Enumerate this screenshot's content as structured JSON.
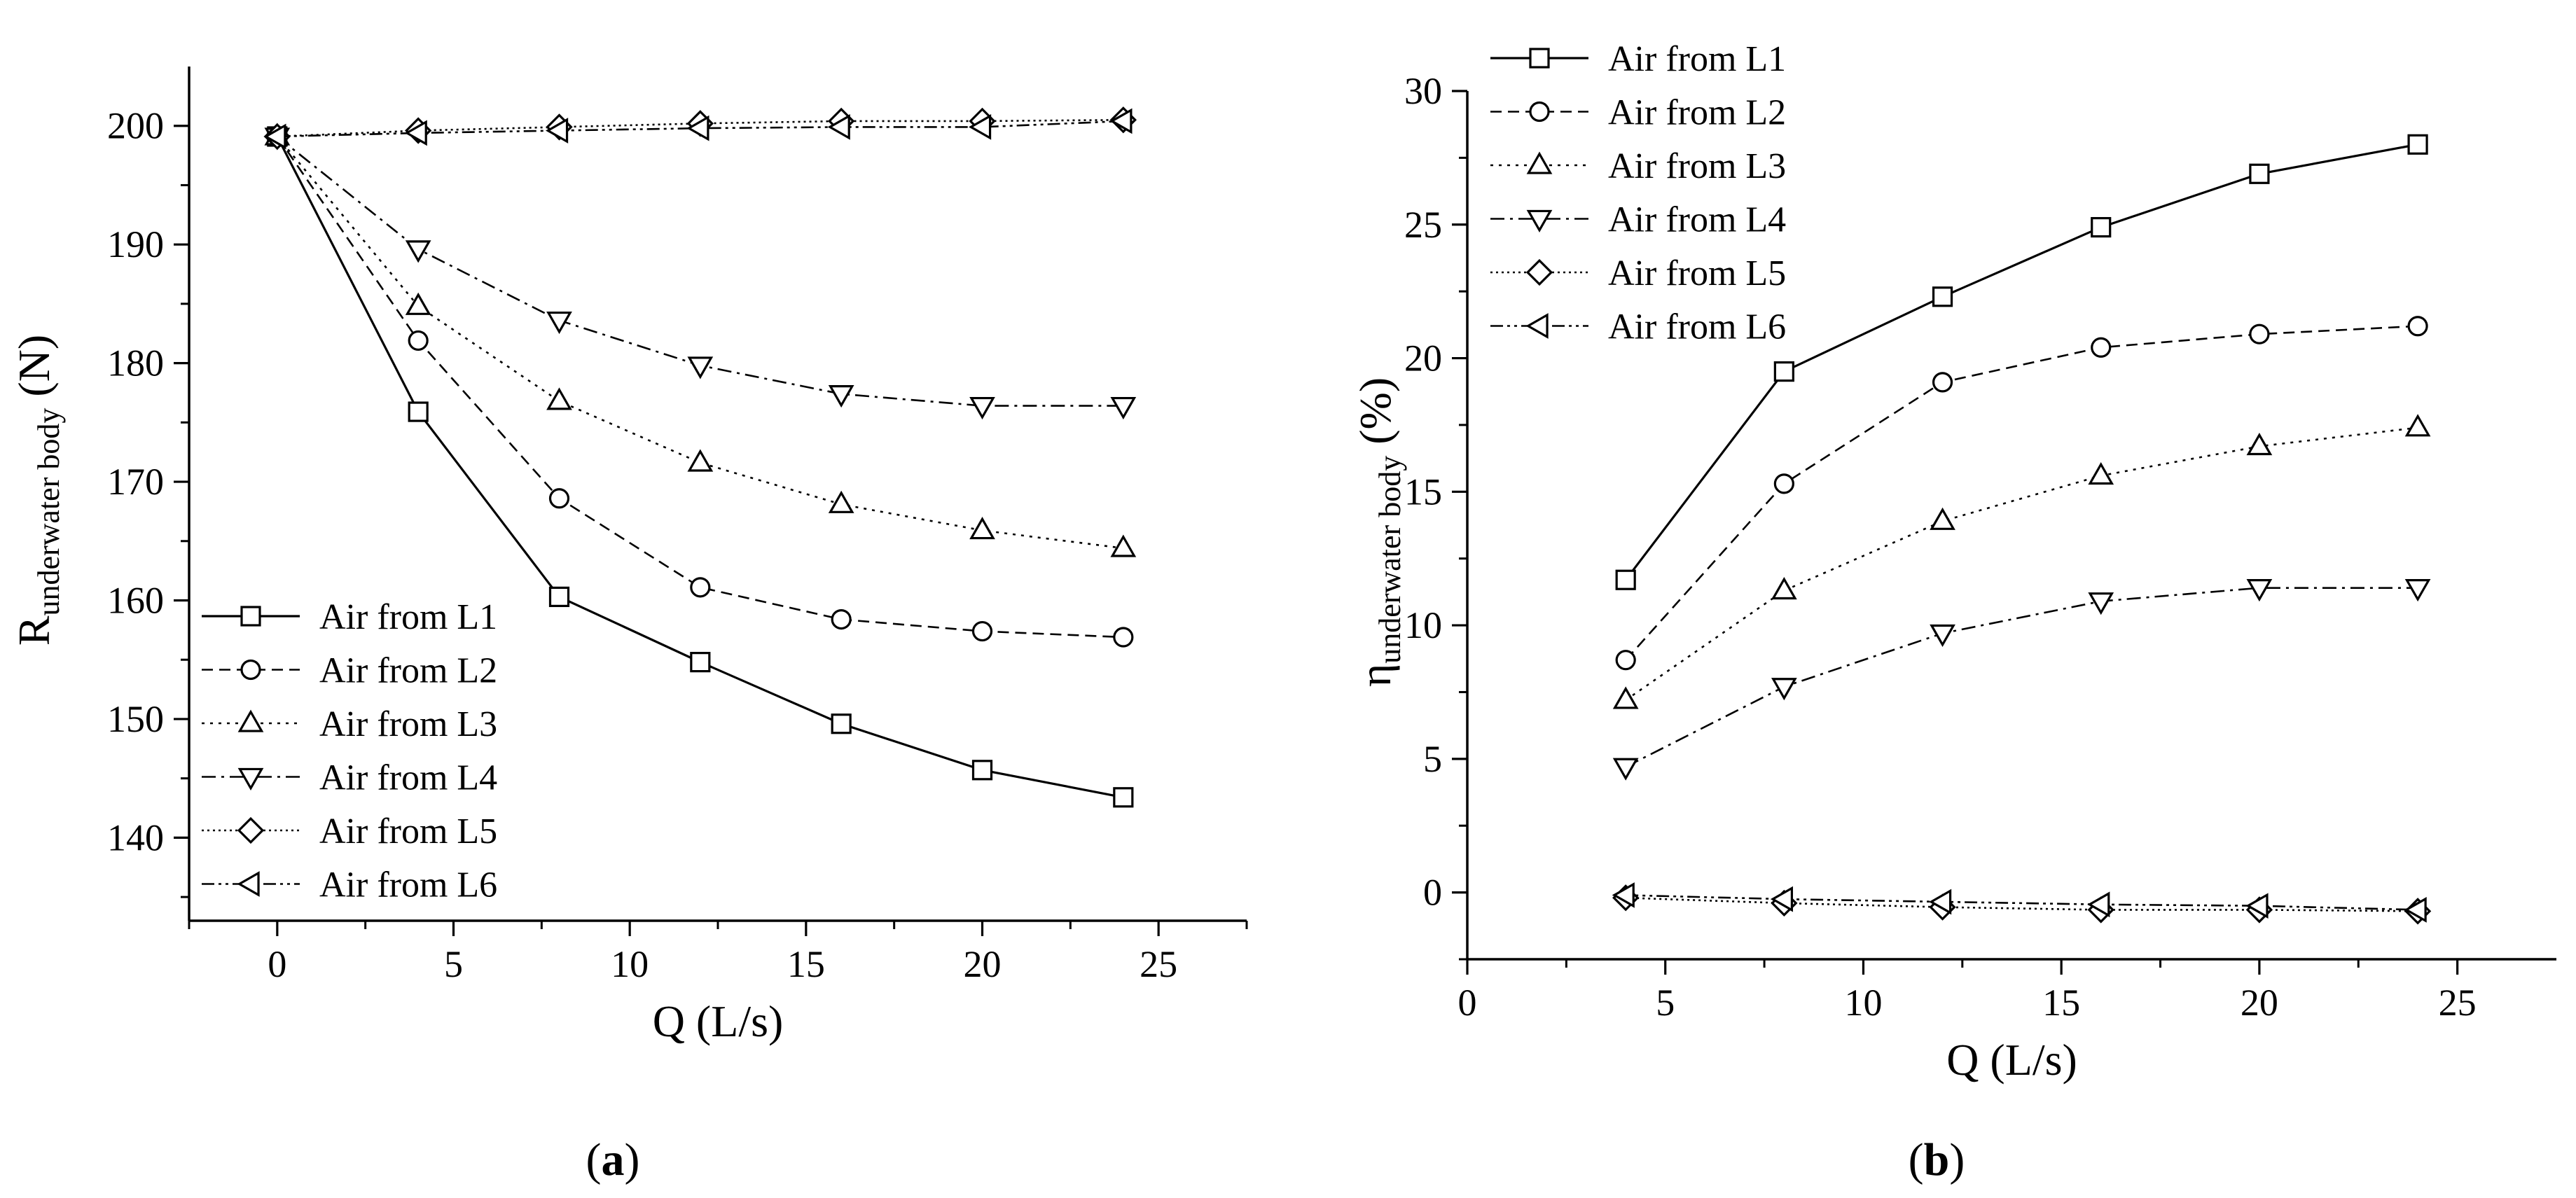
{
  "chart_data": [
    {
      "type": "line",
      "panel_label": {
        "open": "(",
        "letter": "a",
        "close": ")"
      },
      "xlabel": "Q  (L/s)",
      "ylabel": {
        "main": "R",
        "sub": "underwater body",
        "unit": " (N)"
      },
      "xlim": [
        -2.5,
        27.5
      ],
      "ylim": [
        133,
        205
      ],
      "xticks": [
        0,
        5,
        10,
        15,
        20,
        25
      ],
      "yticks": [
        140,
        150,
        160,
        170,
        180,
        190,
        200
      ],
      "xminor": [
        -2.5,
        2.5,
        7.5,
        12.5,
        17.5,
        22.5,
        27.5
      ],
      "yminor": [
        135,
        145,
        155,
        165,
        175,
        185,
        195
      ],
      "grid": false,
      "legend_position": "bottom-left",
      "series": [
        {
          "name": "Air from L1",
          "marker": "square",
          "dash": "solid",
          "x": [
            0,
            4,
            8,
            12,
            16,
            20,
            24
          ],
          "y": [
            199.1,
            175.9,
            160.3,
            154.8,
            149.6,
            145.7,
            143.4
          ]
        },
        {
          "name": "Air from L2",
          "marker": "circle",
          "dash": "dash",
          "x": [
            0,
            4,
            8,
            12,
            16,
            20,
            24
          ],
          "y": [
            199.1,
            181.9,
            168.6,
            161.1,
            158.4,
            157.4,
            156.9
          ]
        },
        {
          "name": "Air from L3",
          "marker": "triangle-up",
          "dash": "dot",
          "x": [
            0,
            4,
            8,
            12,
            16,
            20,
            24
          ],
          "y": [
            199.1,
            184.8,
            176.8,
            171.6,
            168.1,
            165.9,
            164.4
          ]
        },
        {
          "name": "Air from L4",
          "marker": "triangle-down",
          "dash": "dashdot",
          "x": [
            0,
            4,
            8,
            12,
            16,
            20,
            24
          ],
          "y": [
            199.1,
            189.6,
            183.6,
            179.8,
            177.4,
            176.4,
            176.4
          ]
        },
        {
          "name": "Air from L5",
          "marker": "diamond",
          "dash": "shortdot",
          "x": [
            0,
            4,
            8,
            12,
            16,
            20,
            24
          ],
          "y": [
            199.1,
            199.6,
            199.9,
            200.2,
            200.4,
            200.4,
            200.5
          ]
        },
        {
          "name": "Air from L6",
          "marker": "triangle-left",
          "dash": "dashdotdot",
          "x": [
            0,
            4,
            8,
            12,
            16,
            20,
            24
          ],
          "y": [
            199.1,
            199.4,
            199.6,
            199.8,
            199.9,
            199.9,
            200.4
          ]
        }
      ]
    },
    {
      "type": "line",
      "panel_label": {
        "open": "(",
        "letter": "b",
        "close": ")"
      },
      "xlabel": "Q  (L/s)",
      "ylabel": {
        "main": "η",
        "sub": "underwater body",
        "unit": " (%)"
      },
      "xlim": [
        0,
        27.5
      ],
      "ylim": [
        -2.5,
        30
      ],
      "xticks": [
        0,
        5,
        10,
        15,
        20,
        25
      ],
      "yticks": [
        0,
        5,
        10,
        15,
        20,
        25,
        30
      ],
      "xminor": [
        2.5,
        7.5,
        12.5,
        17.5,
        22.5
      ],
      "yminor": [
        -2.5,
        2.5,
        7.5,
        12.5,
        17.5,
        22.5,
        27.5
      ],
      "grid": false,
      "legend_position": "top-left",
      "series": [
        {
          "name": "Air from L1",
          "marker": "square",
          "dash": "solid",
          "x": [
            4,
            8,
            12,
            16,
            20,
            24
          ],
          "y": [
            11.7,
            19.5,
            22.3,
            24.9,
            26.9,
            28.0
          ]
        },
        {
          "name": "Air from L2",
          "marker": "circle",
          "dash": "dash",
          "x": [
            4,
            8,
            12,
            16,
            20,
            24
          ],
          "y": [
            8.7,
            15.3,
            19.1,
            20.4,
            20.9,
            21.2
          ]
        },
        {
          "name": "Air from L3",
          "marker": "triangle-up",
          "dash": "dot",
          "x": [
            4,
            8,
            12,
            16,
            20,
            24
          ],
          "y": [
            7.2,
            11.3,
            13.9,
            15.6,
            16.7,
            17.4
          ]
        },
        {
          "name": "Air from L4",
          "marker": "triangle-down",
          "dash": "dashdot",
          "x": [
            4,
            8,
            12,
            16,
            20,
            24
          ],
          "y": [
            4.7,
            7.7,
            9.7,
            10.9,
            11.4,
            11.4
          ]
        },
        {
          "name": "Air from L5",
          "marker": "diamond",
          "dash": "shortdot",
          "x": [
            4,
            8,
            12,
            16,
            20,
            24
          ],
          "y": [
            -0.2,
            -0.4,
            -0.55,
            -0.65,
            -0.65,
            -0.7
          ]
        },
        {
          "name": "Air from L6",
          "marker": "triangle-left",
          "dash": "dashdotdot",
          "x": [
            4,
            8,
            12,
            16,
            20,
            24
          ],
          "y": [
            -0.1,
            -0.25,
            -0.35,
            -0.45,
            -0.5,
            -0.65
          ]
        }
      ]
    }
  ]
}
